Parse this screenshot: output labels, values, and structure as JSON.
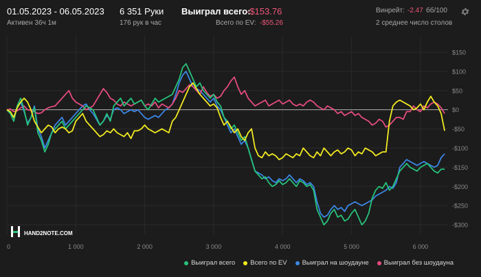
{
  "header": {
    "date_range": "01.05.2023 - 06.05.2023",
    "active": "Активен 36ч 1м",
    "hands": "6 351 Руки",
    "hands_rate": "176 рук в час",
    "won_label": "Выиграл всего:",
    "won_value": "-$153.76",
    "ev_label": "Всего по EV:",
    "ev_value": "-$55.26",
    "winrate_label": "Винрейт:",
    "winrate_value": "-2.47",
    "winrate_unit": "бб/100",
    "tables": "2 среднее число столов"
  },
  "watermark": {
    "text": "HAND2NOTE.COM"
  },
  "icons": {
    "settings": "gear-icon",
    "logo": "hand2note-logo-icon"
  },
  "colors": {
    "background": "#1c1c1c",
    "won": "#27c27a",
    "ev": "#f2ea20",
    "showdown": "#3b86e6",
    "nonshowdown": "#e54b7f",
    "zero_line": "#d8d8d8",
    "grid": "#2a2a2a"
  },
  "chart_data": {
    "type": "line",
    "xlim": [
      0,
      6400
    ],
    "ylim": [
      -325,
      175
    ],
    "x_ticks": [
      0,
      1000,
      2000,
      3000,
      4000,
      5000,
      6000
    ],
    "x_tick_labels": [
      "0",
      "1 000",
      "2 000",
      "3 000",
      "4 000",
      "5 000",
      "6 000"
    ],
    "y_ticks": [
      150,
      100,
      50,
      0,
      -50,
      -100,
      -150,
      -200,
      -250,
      -300
    ],
    "y_tick_labels": [
      "$150",
      "$100",
      "$50",
      "$0",
      "-$50",
      "-$100",
      "-$150",
      "-$200",
      "-$250",
      "-$300"
    ],
    "legend_position": "bottom-right",
    "grid": true,
    "series": [
      {
        "name": "Выиграл всего",
        "color": "#27c27a",
        "x": [
          0,
          50,
          100,
          150,
          200,
          250,
          300,
          350,
          400,
          450,
          500,
          550,
          600,
          650,
          700,
          750,
          800,
          850,
          900,
          950,
          1000,
          1050,
          1100,
          1150,
          1200,
          1250,
          1300,
          1350,
          1400,
          1450,
          1500,
          1550,
          1600,
          1650,
          1700,
          1750,
          1800,
          1850,
          1900,
          1950,
          2000,
          2050,
          2100,
          2150,
          2200,
          2250,
          2300,
          2350,
          2400,
          2450,
          2500,
          2550,
          2600,
          2650,
          2700,
          2750,
          2800,
          2850,
          2900,
          2950,
          3000,
          3050,
          3100,
          3150,
          3200,
          3250,
          3300,
          3350,
          3400,
          3450,
          3500,
          3550,
          3600,
          3650,
          3700,
          3750,
          3800,
          3850,
          3900,
          3950,
          4000,
          4050,
          4100,
          4150,
          4200,
          4250,
          4300,
          4350,
          4400,
          4450,
          4500,
          4550,
          4600,
          4650,
          4700,
          4750,
          4800,
          4850,
          4900,
          4950,
          5000,
          5050,
          5100,
          5150,
          5200,
          5250,
          5300,
          5350,
          5400,
          5450,
          5500,
          5550,
          5600,
          5650,
          5700,
          5750,
          5800,
          5850,
          5900,
          5950,
          6000,
          6050,
          6100,
          6150,
          6200,
          6250,
          6300,
          6351
        ],
        "values": [
          0,
          -10,
          -30,
          10,
          30,
          0,
          -40,
          -20,
          5,
          -60,
          -80,
          -110,
          -90,
          -60,
          -50,
          -40,
          -30,
          -50,
          -40,
          -30,
          -20,
          -10,
          0,
          10,
          5,
          0,
          -20,
          -40,
          -30,
          -10,
          -30,
          10,
          20,
          30,
          10,
          20,
          30,
          15,
          20,
          25,
          10,
          0,
          15,
          30,
          20,
          25,
          30,
          35,
          40,
          60,
          80,
          110,
          120,
          100,
          80,
          60,
          70,
          50,
          40,
          30,
          40,
          20,
          10,
          -20,
          -30,
          -50,
          -40,
          -60,
          -80,
          -70,
          -100,
          -130,
          -160,
          -170,
          -180,
          -175,
          -190,
          -200,
          -195,
          -185,
          -195,
          -190,
          -180,
          -190,
          -200,
          -185,
          -190,
          -200,
          -195,
          -210,
          -260,
          -280,
          -300,
          -290,
          -270,
          -260,
          -280,
          -275,
          -290,
          -285,
          -270,
          -260,
          -280,
          -300,
          -290,
          -270,
          -230,
          -210,
          -200,
          -205,
          -190,
          -210,
          -200,
          -180,
          -160,
          -150,
          -140,
          -150,
          -155,
          -160,
          -150,
          -145,
          -140,
          -150,
          -160,
          -165,
          -155,
          -155
        ]
      },
      {
        "name": "Всего по EV",
        "color": "#f2ea20",
        "x": [
          0,
          50,
          100,
          150,
          200,
          250,
          300,
          350,
          400,
          450,
          500,
          550,
          600,
          650,
          700,
          750,
          800,
          850,
          900,
          950,
          1000,
          1050,
          1100,
          1150,
          1200,
          1250,
          1300,
          1350,
          1400,
          1450,
          1500,
          1550,
          1600,
          1650,
          1700,
          1750,
          1800,
          1850,
          1900,
          1950,
          2000,
          2050,
          2100,
          2150,
          2200,
          2250,
          2300,
          2350,
          2400,
          2450,
          2500,
          2550,
          2600,
          2650,
          2700,
          2750,
          2800,
          2850,
          2900,
          2950,
          3000,
          3050,
          3100,
          3150,
          3200,
          3250,
          3300,
          3350,
          3400,
          3450,
          3500,
          3550,
          3600,
          3650,
          3700,
          3750,
          3800,
          3850,
          3900,
          3950,
          4000,
          4050,
          4100,
          4150,
          4200,
          4250,
          4300,
          4350,
          4400,
          4450,
          4500,
          4550,
          4600,
          4650,
          4700,
          4750,
          4800,
          4850,
          4900,
          4950,
          5000,
          5050,
          5100,
          5150,
          5200,
          5250,
          5300,
          5350,
          5400,
          5450,
          5500,
          5550,
          5600,
          5650,
          5700,
          5750,
          5800,
          5850,
          5900,
          5950,
          6000,
          6050,
          6100,
          6150,
          6200,
          6250,
          6300,
          6351
        ],
        "values": [
          0,
          -5,
          -20,
          5,
          20,
          30,
          20,
          0,
          -30,
          -45,
          -60,
          -50,
          -40,
          -45,
          -60,
          -50,
          -45,
          -50,
          -60,
          -55,
          -30,
          -20,
          -10,
          -30,
          -40,
          -50,
          -60,
          -70,
          -65,
          -55,
          -60,
          -50,
          -60,
          -65,
          -70,
          -60,
          -75,
          -55,
          -55,
          -50,
          -40,
          -50,
          -55,
          -60,
          -55,
          -50,
          -55,
          -60,
          -30,
          -20,
          0,
          20,
          40,
          60,
          70,
          55,
          40,
          30,
          20,
          10,
          15,
          5,
          -20,
          -40,
          -30,
          -45,
          -60,
          -50,
          -70,
          -80,
          -60,
          -50,
          -100,
          -120,
          -125,
          -110,
          -120,
          -115,
          -120,
          -130,
          -125,
          -115,
          -120,
          -125,
          -115,
          -120,
          -100,
          -110,
          -120,
          -125,
          -110,
          -120,
          -100,
          -110,
          -120,
          -110,
          -105,
          -115,
          -110,
          -100,
          -105,
          -120,
          -110,
          -115,
          -100,
          -105,
          -110,
          -120,
          -115,
          -110,
          -110,
          -30,
          10,
          20,
          25,
          20,
          15,
          10,
          0,
          5,
          15,
          0,
          20,
          35,
          20,
          10,
          -10,
          -55
        ]
      },
      {
        "name": "Выиграл на шоудауне",
        "color": "#3b86e6",
        "x": [
          0,
          50,
          100,
          150,
          200,
          250,
          300,
          350,
          400,
          450,
          500,
          550,
          600,
          650,
          700,
          750,
          800,
          850,
          900,
          950,
          1000,
          1050,
          1100,
          1150,
          1200,
          1250,
          1300,
          1350,
          1400,
          1450,
          1500,
          1550,
          1600,
          1650,
          1700,
          1750,
          1800,
          1850,
          1900,
          1950,
          2000,
          2050,
          2100,
          2150,
          2200,
          2250,
          2300,
          2350,
          2400,
          2450,
          2500,
          2550,
          2600,
          2650,
          2700,
          2750,
          2800,
          2850,
          2900,
          2950,
          3000,
          3050,
          3100,
          3150,
          3200,
          3250,
          3300,
          3350,
          3400,
          3450,
          3500,
          3550,
          3600,
          3650,
          3700,
          3750,
          3800,
          3850,
          3900,
          3950,
          4000,
          4050,
          4100,
          4150,
          4200,
          4250,
          4300,
          4350,
          4400,
          4450,
          4500,
          4550,
          4600,
          4650,
          4700,
          4750,
          4800,
          4850,
          4900,
          4950,
          5000,
          5050,
          5100,
          5150,
          5200,
          5250,
          5300,
          5350,
          5400,
          5450,
          5500,
          5550,
          5600,
          5650,
          5700,
          5750,
          5800,
          5850,
          5900,
          5950,
          6000,
          6050,
          6100,
          6150,
          6200,
          6250,
          6300,
          6351
        ],
        "values": [
          0,
          -10,
          -20,
          5,
          20,
          -5,
          -35,
          -20,
          10,
          -50,
          -70,
          -100,
          -80,
          -60,
          -40,
          -30,
          -20,
          -40,
          -30,
          -20,
          -10,
          0,
          10,
          15,
          0,
          -10,
          -25,
          -40,
          -30,
          -15,
          -25,
          0,
          5,
          0,
          -10,
          -5,
          0,
          -5,
          0,
          -10,
          -20,
          -25,
          -20,
          -15,
          -20,
          -10,
          0,
          5,
          15,
          40,
          70,
          90,
          100,
          80,
          60,
          55,
          50,
          40,
          30,
          20,
          30,
          10,
          0,
          -20,
          -40,
          -60,
          -50,
          -70,
          -90,
          -80,
          -100,
          -130,
          -160,
          -165,
          -170,
          -180,
          -175,
          -185,
          -190,
          -180,
          -185,
          -180,
          -170,
          -180,
          -190,
          -180,
          -185,
          -195,
          -190,
          -200,
          -240,
          -270,
          -280,
          -275,
          -260,
          -250,
          -260,
          -255,
          -265,
          -250,
          -245,
          -240,
          -245,
          -250,
          -245,
          -240,
          -235,
          -225,
          -220,
          -215,
          -210,
          -200,
          -205,
          -190,
          -150,
          -140,
          -130,
          -135,
          -140,
          -145,
          -140,
          -135,
          -140,
          -145,
          -150,
          -145,
          -125,
          -115
        ]
      },
      {
        "name": "Выиграл без шоудауна",
        "color": "#e54b7f",
        "x": [
          0,
          50,
          100,
          150,
          200,
          250,
          300,
          350,
          400,
          450,
          500,
          550,
          600,
          650,
          700,
          750,
          800,
          850,
          900,
          950,
          1000,
          1050,
          1100,
          1150,
          1200,
          1250,
          1300,
          1350,
          1400,
          1450,
          1500,
          1550,
          1600,
          1650,
          1700,
          1750,
          1800,
          1850,
          1900,
          1950,
          2000,
          2050,
          2100,
          2150,
          2200,
          2250,
          2300,
          2350,
          2400,
          2450,
          2500,
          2550,
          2600,
          2650,
          2700,
          2750,
          2800,
          2850,
          2900,
          2950,
          3000,
          3050,
          3100,
          3150,
          3200,
          3250,
          3300,
          3350,
          3400,
          3450,
          3500,
          3550,
          3600,
          3650,
          3700,
          3750,
          3800,
          3850,
          3900,
          3950,
          4000,
          4050,
          4100,
          4150,
          4200,
          4250,
          4300,
          4350,
          4400,
          4450,
          4500,
          4550,
          4600,
          4650,
          4700,
          4750,
          4800,
          4850,
          4900,
          4950,
          5000,
          5050,
          5100,
          5150,
          5200,
          5250,
          5300,
          5350,
          5400,
          5450,
          5500,
          5550,
          5600,
          5650,
          5700,
          5750,
          5800,
          5850,
          5900,
          5950,
          6000,
          6050,
          6100,
          6150,
          6200,
          6250,
          6300,
          6351
        ],
        "values": [
          0,
          2,
          -5,
          -3,
          5,
          10,
          0,
          -2,
          -5,
          -10,
          -8,
          0,
          5,
          8,
          10,
          20,
          30,
          40,
          50,
          30,
          20,
          15,
          10,
          0,
          5,
          10,
          25,
          40,
          55,
          45,
          30,
          25,
          15,
          10,
          20,
          15,
          10,
          15,
          20,
          25,
          10,
          15,
          10,
          20,
          5,
          15,
          10,
          5,
          15,
          30,
          50,
          45,
          55,
          65,
          60,
          50,
          40,
          60,
          45,
          35,
          40,
          30,
          35,
          50,
          60,
          75,
          85,
          60,
          40,
          50,
          30,
          20,
          10,
          15,
          20,
          25,
          10,
          15,
          20,
          25,
          15,
          20,
          25,
          15,
          10,
          15,
          10,
          20,
          25,
          20,
          10,
          5,
          0,
          10,
          5,
          0,
          -10,
          -5,
          -15,
          -10,
          -5,
          -15,
          -10,
          -20,
          -25,
          -30,
          -40,
          -35,
          -25,
          -30,
          -45,
          -40,
          -30,
          -20,
          -20,
          -25,
          -5,
          -5,
          10,
          0,
          -5,
          10,
          5,
          15,
          20,
          15,
          5,
          -10
        ]
      }
    ]
  }
}
